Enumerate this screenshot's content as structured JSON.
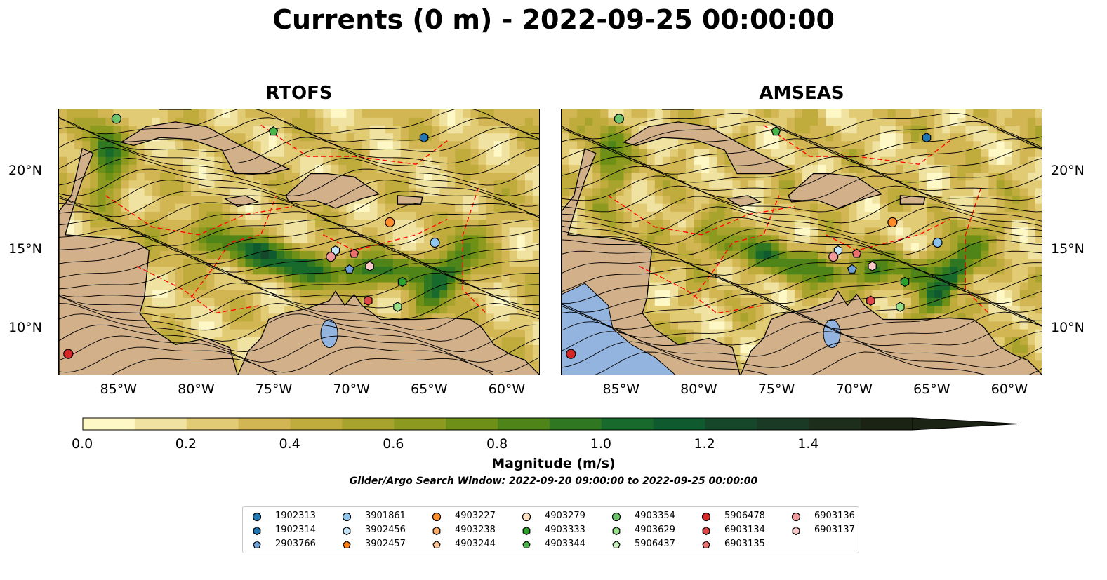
{
  "title": "Currents (0 m) - 2022-09-25 00:00:00",
  "panels": [
    {
      "title": "RTOFS"
    },
    {
      "title": "AMSEAS"
    }
  ],
  "axes": {
    "lon_labels": [
      "85°W",
      "80°W",
      "75°W",
      "70°W",
      "65°W",
      "60°W"
    ],
    "lat_labels": [
      "20°N",
      "15°N",
      "10°N"
    ],
    "lon_range": [
      -89,
      -58
    ],
    "lat_range": [
      7,
      24
    ]
  },
  "colorbar": {
    "label": "Magnitude (m/s)",
    "ticks": [
      "0.0",
      "0.2",
      "0.4",
      "0.6",
      "0.8",
      "1.0",
      "1.2",
      "1.4"
    ],
    "range": [
      0,
      1.6
    ],
    "extend": "max",
    "colors": [
      "#fef7c6",
      "#f0e2a0",
      "#e2cb75",
      "#d2b653",
      "#bfac3d",
      "#a7a32c",
      "#8c9b1f",
      "#6e9016",
      "#4f8418",
      "#2f7721",
      "#176a2c",
      "#0f5a2e",
      "#16472a",
      "#1a3a25",
      "#1d2e1c",
      "#1b2414"
    ]
  },
  "subtitle": "Glider/Argo Search Window: 2022-09-20 09:00:00 to 2022-09-25 00:00:00",
  "legend": [
    {
      "id": "1902313",
      "marker": "circle",
      "color": "#1f77b4"
    },
    {
      "id": "1902314",
      "marker": "hexagon",
      "color": "#1f77b4"
    },
    {
      "id": "2903766",
      "marker": "pentagon",
      "color": "#6fa0d8"
    },
    {
      "id": "3901861",
      "marker": "circle",
      "color": "#8ec4ec"
    },
    {
      "id": "3902456",
      "marker": "hexagon",
      "color": "#c6e6fa"
    },
    {
      "id": "3902457",
      "marker": "pentagon",
      "color": "#ff7f0e"
    },
    {
      "id": "4903227",
      "marker": "circle",
      "color": "#ff8c2a"
    },
    {
      "id": "4903238",
      "marker": "hexagon",
      "color": "#ffae6a"
    },
    {
      "id": "4903244",
      "marker": "pentagon",
      "color": "#ffc594"
    },
    {
      "id": "4903279",
      "marker": "circle",
      "color": "#ffe2c4"
    },
    {
      "id": "4903333",
      "marker": "hexagon",
      "color": "#2ca02c"
    },
    {
      "id": "4903344",
      "marker": "pentagon",
      "color": "#49b449"
    },
    {
      "id": "4903354",
      "marker": "circle",
      "color": "#6cc46c"
    },
    {
      "id": "4903629",
      "marker": "hexagon",
      "color": "#98df8a"
    },
    {
      "id": "5906437",
      "marker": "pentagon",
      "color": "#c8f0c0"
    },
    {
      "id": "5906478",
      "marker": "circle",
      "color": "#d62728"
    },
    {
      "id": "6903134",
      "marker": "hexagon",
      "color": "#e04848"
    },
    {
      "id": "6903135",
      "marker": "pentagon",
      "color": "#ea7070"
    },
    {
      "id": "6903136",
      "marker": "circle",
      "color": "#f29a9a"
    },
    {
      "id": "6903137",
      "marker": "hexagon",
      "color": "#f9c8c8"
    }
  ],
  "map_colors": {
    "land": "#d2b08a",
    "pacific_water": "#94b4e0",
    "eez_lines": "#ff0000",
    "streamlines": "#000000"
  }
}
